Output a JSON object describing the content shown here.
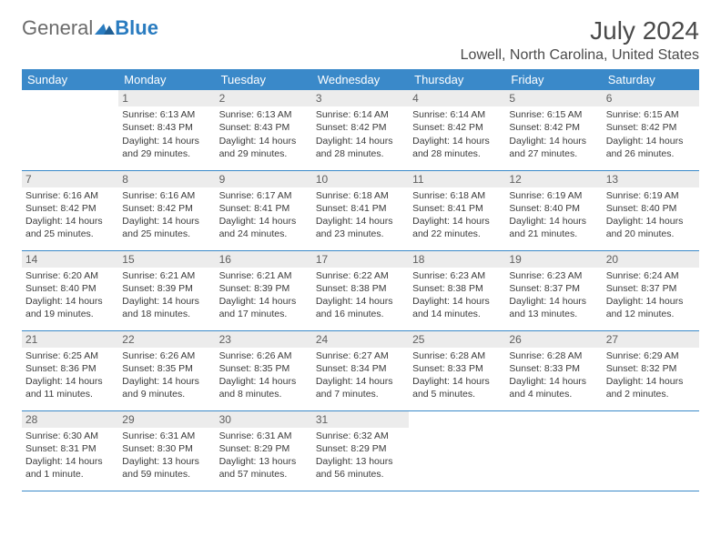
{
  "brand": {
    "general": "General",
    "blue": "Blue"
  },
  "title": "July 2024",
  "location": "Lowell, North Carolina, United States",
  "colors": {
    "header_bg": "#3a89c9",
    "header_text": "#ffffff",
    "daynum_bg": "#ececec",
    "border": "#3a89c9",
    "text": "#3a3a3a"
  },
  "typography": {
    "title_fontsize": 28,
    "location_fontsize": 16,
    "weekday_fontsize": 13,
    "cell_fontsize": 10.5
  },
  "weekdays": [
    "Sunday",
    "Monday",
    "Tuesday",
    "Wednesday",
    "Thursday",
    "Friday",
    "Saturday"
  ],
  "weeks": [
    [
      {
        "empty": true
      },
      {
        "day": "1",
        "sunrise": "Sunrise: 6:13 AM",
        "sunset": "Sunset: 8:43 PM",
        "d1": "Daylight: 14 hours",
        "d2": "and 29 minutes."
      },
      {
        "day": "2",
        "sunrise": "Sunrise: 6:13 AM",
        "sunset": "Sunset: 8:43 PM",
        "d1": "Daylight: 14 hours",
        "d2": "and 29 minutes."
      },
      {
        "day": "3",
        "sunrise": "Sunrise: 6:14 AM",
        "sunset": "Sunset: 8:42 PM",
        "d1": "Daylight: 14 hours",
        "d2": "and 28 minutes."
      },
      {
        "day": "4",
        "sunrise": "Sunrise: 6:14 AM",
        "sunset": "Sunset: 8:42 PM",
        "d1": "Daylight: 14 hours",
        "d2": "and 28 minutes."
      },
      {
        "day": "5",
        "sunrise": "Sunrise: 6:15 AM",
        "sunset": "Sunset: 8:42 PM",
        "d1": "Daylight: 14 hours",
        "d2": "and 27 minutes."
      },
      {
        "day": "6",
        "sunrise": "Sunrise: 6:15 AM",
        "sunset": "Sunset: 8:42 PM",
        "d1": "Daylight: 14 hours",
        "d2": "and 26 minutes."
      }
    ],
    [
      {
        "day": "7",
        "sunrise": "Sunrise: 6:16 AM",
        "sunset": "Sunset: 8:42 PM",
        "d1": "Daylight: 14 hours",
        "d2": "and 25 minutes."
      },
      {
        "day": "8",
        "sunrise": "Sunrise: 6:16 AM",
        "sunset": "Sunset: 8:42 PM",
        "d1": "Daylight: 14 hours",
        "d2": "and 25 minutes."
      },
      {
        "day": "9",
        "sunrise": "Sunrise: 6:17 AM",
        "sunset": "Sunset: 8:41 PM",
        "d1": "Daylight: 14 hours",
        "d2": "and 24 minutes."
      },
      {
        "day": "10",
        "sunrise": "Sunrise: 6:18 AM",
        "sunset": "Sunset: 8:41 PM",
        "d1": "Daylight: 14 hours",
        "d2": "and 23 minutes."
      },
      {
        "day": "11",
        "sunrise": "Sunrise: 6:18 AM",
        "sunset": "Sunset: 8:41 PM",
        "d1": "Daylight: 14 hours",
        "d2": "and 22 minutes."
      },
      {
        "day": "12",
        "sunrise": "Sunrise: 6:19 AM",
        "sunset": "Sunset: 8:40 PM",
        "d1": "Daylight: 14 hours",
        "d2": "and 21 minutes."
      },
      {
        "day": "13",
        "sunrise": "Sunrise: 6:19 AM",
        "sunset": "Sunset: 8:40 PM",
        "d1": "Daylight: 14 hours",
        "d2": "and 20 minutes."
      }
    ],
    [
      {
        "day": "14",
        "sunrise": "Sunrise: 6:20 AM",
        "sunset": "Sunset: 8:40 PM",
        "d1": "Daylight: 14 hours",
        "d2": "and 19 minutes."
      },
      {
        "day": "15",
        "sunrise": "Sunrise: 6:21 AM",
        "sunset": "Sunset: 8:39 PM",
        "d1": "Daylight: 14 hours",
        "d2": "and 18 minutes."
      },
      {
        "day": "16",
        "sunrise": "Sunrise: 6:21 AM",
        "sunset": "Sunset: 8:39 PM",
        "d1": "Daylight: 14 hours",
        "d2": "and 17 minutes."
      },
      {
        "day": "17",
        "sunrise": "Sunrise: 6:22 AM",
        "sunset": "Sunset: 8:38 PM",
        "d1": "Daylight: 14 hours",
        "d2": "and 16 minutes."
      },
      {
        "day": "18",
        "sunrise": "Sunrise: 6:23 AM",
        "sunset": "Sunset: 8:38 PM",
        "d1": "Daylight: 14 hours",
        "d2": "and 14 minutes."
      },
      {
        "day": "19",
        "sunrise": "Sunrise: 6:23 AM",
        "sunset": "Sunset: 8:37 PM",
        "d1": "Daylight: 14 hours",
        "d2": "and 13 minutes."
      },
      {
        "day": "20",
        "sunrise": "Sunrise: 6:24 AM",
        "sunset": "Sunset: 8:37 PM",
        "d1": "Daylight: 14 hours",
        "d2": "and 12 minutes."
      }
    ],
    [
      {
        "day": "21",
        "sunrise": "Sunrise: 6:25 AM",
        "sunset": "Sunset: 8:36 PM",
        "d1": "Daylight: 14 hours",
        "d2": "and 11 minutes."
      },
      {
        "day": "22",
        "sunrise": "Sunrise: 6:26 AM",
        "sunset": "Sunset: 8:35 PM",
        "d1": "Daylight: 14 hours",
        "d2": "and 9 minutes."
      },
      {
        "day": "23",
        "sunrise": "Sunrise: 6:26 AM",
        "sunset": "Sunset: 8:35 PM",
        "d1": "Daylight: 14 hours",
        "d2": "and 8 minutes."
      },
      {
        "day": "24",
        "sunrise": "Sunrise: 6:27 AM",
        "sunset": "Sunset: 8:34 PM",
        "d1": "Daylight: 14 hours",
        "d2": "and 7 minutes."
      },
      {
        "day": "25",
        "sunrise": "Sunrise: 6:28 AM",
        "sunset": "Sunset: 8:33 PM",
        "d1": "Daylight: 14 hours",
        "d2": "and 5 minutes."
      },
      {
        "day": "26",
        "sunrise": "Sunrise: 6:28 AM",
        "sunset": "Sunset: 8:33 PM",
        "d1": "Daylight: 14 hours",
        "d2": "and 4 minutes."
      },
      {
        "day": "27",
        "sunrise": "Sunrise: 6:29 AM",
        "sunset": "Sunset: 8:32 PM",
        "d1": "Daylight: 14 hours",
        "d2": "and 2 minutes."
      }
    ],
    [
      {
        "day": "28",
        "sunrise": "Sunrise: 6:30 AM",
        "sunset": "Sunset: 8:31 PM",
        "d1": "Daylight: 14 hours",
        "d2": "and 1 minute."
      },
      {
        "day": "29",
        "sunrise": "Sunrise: 6:31 AM",
        "sunset": "Sunset: 8:30 PM",
        "d1": "Daylight: 13 hours",
        "d2": "and 59 minutes."
      },
      {
        "day": "30",
        "sunrise": "Sunrise: 6:31 AM",
        "sunset": "Sunset: 8:29 PM",
        "d1": "Daylight: 13 hours",
        "d2": "and 57 minutes."
      },
      {
        "day": "31",
        "sunrise": "Sunrise: 6:32 AM",
        "sunset": "Sunset: 8:29 PM",
        "d1": "Daylight: 13 hours",
        "d2": "and 56 minutes."
      },
      {
        "empty": true
      },
      {
        "empty": true
      },
      {
        "empty": true
      }
    ]
  ]
}
